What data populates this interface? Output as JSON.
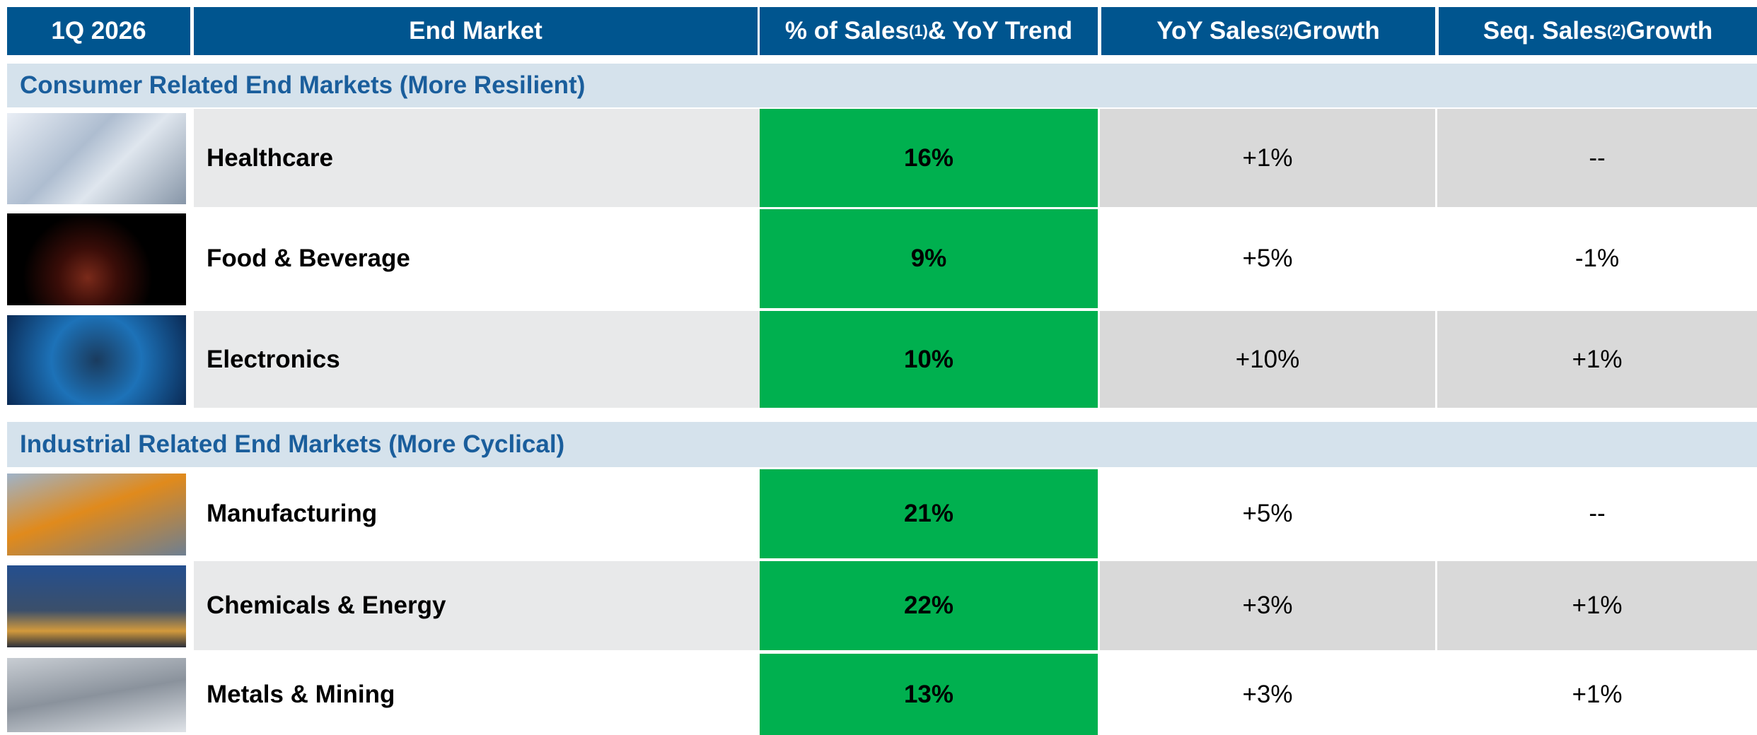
{
  "header": [
    {
      "text": "1Q 2026"
    },
    {
      "text": "End Market"
    },
    {
      "before": "% of Sales",
      "sup": "(1)",
      "after": " & YoY Trend"
    },
    {
      "before": "YoY Sales",
      "sup": "(2)",
      "after": " Growth"
    },
    {
      "before": "Seq. Sales",
      "sup": "(2)",
      "after": " Growth"
    }
  ],
  "sections": [
    {
      "title": "Consumer Related End Markets (More Resilient)",
      "rows": [
        {
          "market": "Healthcare",
          "share": "16%",
          "yoy": "+1%",
          "seq": "--"
        },
        {
          "market": "Food & Beverage",
          "share": "9%",
          "yoy": "+5%",
          "seq": "-1%"
        },
        {
          "market": "Electronics",
          "share": "10%",
          "yoy": "+10%",
          "seq": "+1%"
        }
      ]
    },
    {
      "title": "Industrial Related End Markets (More Cyclical)",
      "rows": [
        {
          "market": "Manufacturing",
          "share": "21%",
          "yoy": "+5%",
          "seq": "--"
        },
        {
          "market": "Chemicals & Energy",
          "share": "22%",
          "yoy": "+3%",
          "seq": "+1%"
        },
        {
          "market": "Metals & Mining",
          "share": "13%",
          "yoy": "+3%",
          "seq": "+1%"
        }
      ]
    }
  ]
}
